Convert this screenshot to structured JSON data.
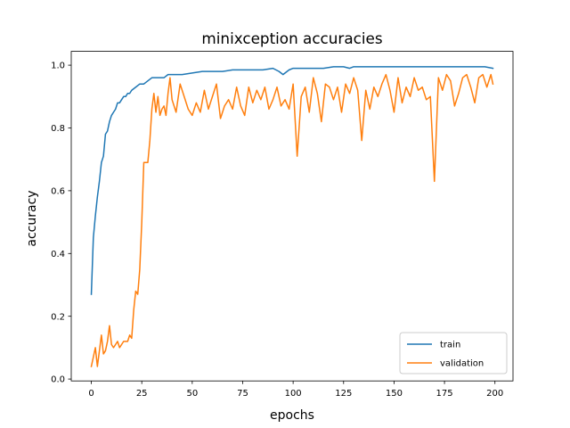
{
  "chart_data": {
    "type": "line",
    "title": "minixception accuracies",
    "xlabel": "epochs",
    "ylabel": "accuracy",
    "xlim": [
      -9.95,
      208.95
    ],
    "ylim": [
      -0.006,
      1.044
    ],
    "xticks": [
      0,
      25,
      50,
      75,
      100,
      125,
      150,
      175,
      200
    ],
    "yticks": [
      0.0,
      0.2,
      0.4,
      0.6,
      0.8,
      1.0
    ],
    "ytick_labels": [
      "0.0",
      "0.2",
      "0.4",
      "0.6",
      "0.8",
      "1.0"
    ],
    "grid": false,
    "legend_position": "lower right",
    "series": [
      {
        "name": "train",
        "color": "#1f77b4",
        "x": [
          0,
          1,
          2,
          3,
          4,
          5,
          6,
          7,
          8,
          9,
          10,
          11,
          12,
          13,
          14,
          15,
          16,
          17,
          18,
          19,
          20,
          22,
          24,
          26,
          28,
          30,
          32,
          34,
          36,
          38,
          40,
          45,
          50,
          55,
          60,
          65,
          70,
          75,
          80,
          85,
          90,
          93,
          95,
          98,
          100,
          105,
          110,
          115,
          120,
          125,
          128,
          130,
          135,
          140,
          145,
          150,
          155,
          160,
          165,
          170,
          175,
          180,
          185,
          190,
          195,
          199
        ],
        "values": [
          0.27,
          0.45,
          0.52,
          0.58,
          0.63,
          0.69,
          0.71,
          0.78,
          0.79,
          0.82,
          0.84,
          0.85,
          0.86,
          0.88,
          0.88,
          0.89,
          0.9,
          0.9,
          0.91,
          0.91,
          0.92,
          0.93,
          0.94,
          0.94,
          0.95,
          0.96,
          0.96,
          0.96,
          0.96,
          0.97,
          0.97,
          0.97,
          0.975,
          0.98,
          0.98,
          0.98,
          0.985,
          0.985,
          0.985,
          0.985,
          0.99,
          0.98,
          0.97,
          0.985,
          0.99,
          0.99,
          0.99,
          0.99,
          0.995,
          0.995,
          0.99,
          0.995,
          0.995,
          0.995,
          0.995,
          0.995,
          0.995,
          0.995,
          0.995,
          0.995,
          0.995,
          0.995,
          0.995,
          0.995,
          0.995,
          0.99
        ]
      },
      {
        "name": "validation",
        "color": "#ff7f0e",
        "x": [
          0,
          1,
          2,
          3,
          4,
          5,
          6,
          7,
          8,
          9,
          10,
          11,
          12,
          13,
          14,
          15,
          16,
          17,
          18,
          19,
          20,
          21,
          22,
          23,
          24,
          25,
          26,
          27,
          28,
          29,
          30,
          31,
          32,
          33,
          34,
          35,
          36,
          37,
          38,
          39,
          40,
          42,
          44,
          46,
          48,
          50,
          52,
          54,
          56,
          58,
          60,
          62,
          64,
          66,
          68,
          70,
          72,
          74,
          76,
          78,
          80,
          82,
          84,
          86,
          88,
          90,
          92,
          94,
          96,
          98,
          100,
          102,
          104,
          106,
          108,
          110,
          112,
          114,
          116,
          118,
          120,
          122,
          124,
          126,
          128,
          130,
          132,
          134,
          136,
          138,
          140,
          142,
          144,
          146,
          148,
          150,
          152,
          154,
          156,
          158,
          160,
          162,
          164,
          166,
          168,
          170,
          172,
          174,
          176,
          178,
          180,
          182,
          184,
          186,
          188,
          190,
          192,
          194,
          196,
          198,
          199
        ],
        "values": [
          0.04,
          0.07,
          0.1,
          0.04,
          0.09,
          0.14,
          0.08,
          0.09,
          0.12,
          0.17,
          0.11,
          0.1,
          0.11,
          0.12,
          0.1,
          0.11,
          0.12,
          0.12,
          0.12,
          0.14,
          0.13,
          0.22,
          0.28,
          0.27,
          0.35,
          0.5,
          0.69,
          0.69,
          0.69,
          0.76,
          0.86,
          0.91,
          0.85,
          0.9,
          0.84,
          0.86,
          0.87,
          0.84,
          0.91,
          0.96,
          0.89,
          0.85,
          0.94,
          0.9,
          0.86,
          0.84,
          0.88,
          0.85,
          0.92,
          0.86,
          0.9,
          0.94,
          0.83,
          0.87,
          0.89,
          0.86,
          0.93,
          0.87,
          0.84,
          0.93,
          0.88,
          0.92,
          0.89,
          0.93,
          0.86,
          0.89,
          0.93,
          0.87,
          0.89,
          0.86,
          0.94,
          0.71,
          0.9,
          0.93,
          0.85,
          0.96,
          0.91,
          0.82,
          0.94,
          0.93,
          0.89,
          0.93,
          0.85,
          0.94,
          0.91,
          0.96,
          0.92,
          0.76,
          0.92,
          0.86,
          0.93,
          0.9,
          0.94,
          0.97,
          0.92,
          0.85,
          0.96,
          0.88,
          0.93,
          0.9,
          0.96,
          0.92,
          0.93,
          0.89,
          0.9,
          0.63,
          0.96,
          0.92,
          0.97,
          0.95,
          0.87,
          0.91,
          0.96,
          0.97,
          0.93,
          0.88,
          0.96,
          0.97,
          0.93,
          0.97,
          0.94
        ]
      }
    ]
  }
}
